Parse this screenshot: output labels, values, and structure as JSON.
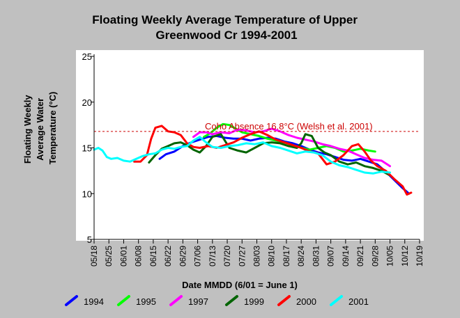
{
  "chart_data": {
    "type": "line",
    "title": [
      "Floating Weekly Average Temperature of Upper",
      "Greenwood Cr 1994-2001"
    ],
    "ylabel": [
      "Floating Weekly",
      "Average Water",
      "Temperature (°C)"
    ],
    "xlabel": "Date MMDD (6/01 = June 1)",
    "ylim": [
      5,
      25
    ],
    "yticks": [
      5,
      10,
      15,
      20,
      25
    ],
    "xlim": [
      -14,
      140
    ],
    "x_ticks": [
      {
        "x": -14,
        "label": "05/18"
      },
      {
        "x": -7,
        "label": "05/25"
      },
      {
        "x": 0,
        "label": "06/01"
      },
      {
        "x": 7,
        "label": "06/08"
      },
      {
        "x": 14,
        "label": "06/15"
      },
      {
        "x": 21,
        "label": "06/22"
      },
      {
        "x": 28,
        "label": "06/29"
      },
      {
        "x": 35,
        "label": "07/06"
      },
      {
        "x": 42,
        "label": "07/13"
      },
      {
        "x": 49,
        "label": "07/20"
      },
      {
        "x": 56,
        "label": "07/27"
      },
      {
        "x": 63,
        "label": "08/03"
      },
      {
        "x": 70,
        "label": "08/10"
      },
      {
        "x": 77,
        "label": "08/17"
      },
      {
        "x": 84,
        "label": "08/24"
      },
      {
        "x": 91,
        "label": "08/31"
      },
      {
        "x": 98,
        "label": "09/07"
      },
      {
        "x": 105,
        "label": "09/14"
      },
      {
        "x": 112,
        "label": "09/21"
      },
      {
        "x": 119,
        "label": "09/28"
      },
      {
        "x": 126,
        "label": "10/05"
      },
      {
        "x": 133,
        "label": "10/12"
      },
      {
        "x": 140,
        "label": "10/19"
      }
    ],
    "threshold": {
      "y": 16.8,
      "label": "Coho Absence 16.8°C (Welsh et al. 2001)",
      "color": "#cc0000"
    },
    "legend_position": "bottom",
    "series": [
      {
        "name": "1994",
        "color": "#0000ff",
        "x": [
          17,
          20,
          24,
          28,
          32,
          36,
          40,
          44,
          48,
          52,
          56,
          60,
          64,
          68,
          72,
          76,
          80,
          84,
          88,
          92,
          96,
          100,
          104,
          108,
          112,
          116,
          120,
          124,
          128,
          132,
          135
        ],
        "y": [
          13.8,
          14.3,
          14.6,
          15.2,
          15.6,
          15.9,
          16.2,
          16.3,
          16.1,
          16.0,
          16.0,
          15.8,
          16.0,
          16.1,
          16.0,
          15.7,
          15.5,
          15.2,
          14.8,
          14.5,
          14.3,
          14.0,
          13.7,
          13.6,
          13.8,
          13.5,
          13.2,
          12.4,
          11.5,
          10.6,
          10.0
        ]
      },
      {
        "name": "1995",
        "color": "#00ff00",
        "x": [
          38,
          41,
          44,
          47,
          50,
          53,
          56,
          60,
          64,
          68,
          72,
          76,
          80,
          84,
          88,
          92,
          96,
          100,
          104,
          108,
          112,
          116,
          119
        ],
        "y": [
          16.2,
          16.6,
          17.2,
          17.6,
          17.5,
          17.1,
          16.7,
          16.5,
          16.3,
          16.0,
          15.8,
          15.6,
          15.3,
          15.0,
          14.8,
          15.0,
          15.2,
          15.0,
          14.6,
          14.7,
          14.9,
          14.7,
          14.6
        ]
      },
      {
        "name": "1997",
        "color": "#ff00ff",
        "x": [
          33,
          36,
          39,
          42,
          46,
          50,
          54,
          58,
          62,
          66,
          70,
          74,
          78,
          82,
          86,
          90,
          94,
          98,
          102,
          106,
          110,
          114,
          118,
          122,
          126
        ],
        "y": [
          16.2,
          16.7,
          16.7,
          16.5,
          16.7,
          16.6,
          17.0,
          16.9,
          16.7,
          16.8,
          17.1,
          16.8,
          16.4,
          16.1,
          15.9,
          15.7,
          15.4,
          15.2,
          14.9,
          14.7,
          14.3,
          13.9,
          13.7,
          13.6,
          13.0
        ]
      },
      {
        "name": "1999",
        "color": "#006400",
        "x": [
          12,
          15,
          18,
          21,
          24,
          27,
          30,
          33,
          36,
          39,
          42,
          46,
          50,
          54,
          58,
          62,
          66,
          70,
          74,
          78,
          82,
          84,
          86,
          89,
          92,
          95,
          98,
          102,
          106,
          110,
          114,
          118,
          122,
          126
        ],
        "y": [
          13.4,
          14.2,
          14.9,
          15.2,
          15.5,
          15.6,
          15.3,
          14.8,
          14.5,
          15.2,
          16.2,
          16.5,
          15.0,
          14.7,
          14.5,
          15.0,
          15.5,
          15.6,
          15.5,
          15.2,
          15.0,
          15.5,
          16.5,
          16.3,
          15.0,
          14.5,
          14.2,
          13.5,
          13.2,
          13.4,
          13.0,
          12.8,
          12.5,
          12.0
        ]
      },
      {
        "name": "2000",
        "color": "#ff0000",
        "x": [
          5,
          8,
          11,
          13,
          15,
          18,
          21,
          24,
          27,
          30,
          33,
          36,
          40,
          44,
          48,
          52,
          56,
          60,
          64,
          68,
          72,
          76,
          80,
          84,
          88,
          92,
          96,
          100,
          104,
          108,
          111,
          114,
          117,
          120,
          124,
          128,
          132,
          134,
          136
        ],
        "y": [
          13.5,
          13.5,
          14.2,
          16.0,
          17.2,
          17.4,
          16.8,
          16.7,
          16.4,
          15.5,
          15.1,
          15.0,
          15.2,
          15.0,
          15.3,
          15.6,
          16.1,
          16.5,
          16.8,
          16.4,
          15.9,
          15.6,
          15.3,
          15.0,
          14.6,
          14.4,
          13.2,
          13.5,
          14.2,
          15.2,
          15.4,
          14.6,
          13.6,
          13.0,
          12.5,
          11.6,
          10.8,
          9.9,
          10.1
        ]
      },
      {
        "name": "2001",
        "color": "#00ffff",
        "x": [
          -14,
          -12,
          -10,
          -8,
          -6,
          -3,
          0,
          3,
          6,
          9,
          12,
          15,
          18,
          21,
          24,
          27,
          30,
          33,
          36,
          39,
          42,
          46,
          50,
          54,
          58,
          62,
          66,
          70,
          74,
          78,
          82,
          86,
          90,
          94,
          98,
          102,
          106,
          110,
          114,
          118,
          122,
          126
        ],
        "y": [
          14.8,
          15.0,
          14.7,
          14.0,
          13.8,
          13.9,
          13.6,
          13.5,
          13.8,
          14.1,
          14.3,
          14.4,
          14.8,
          15.0,
          14.9,
          15.1,
          15.2,
          15.8,
          16.2,
          15.6,
          15.1,
          15.0,
          15.2,
          15.3,
          15.5,
          15.4,
          15.6,
          15.2,
          15.0,
          14.7,
          14.4,
          14.6,
          14.5,
          14.2,
          13.5,
          13.1,
          12.9,
          12.6,
          12.3,
          12.2,
          12.4,
          12.3
        ]
      }
    ]
  }
}
